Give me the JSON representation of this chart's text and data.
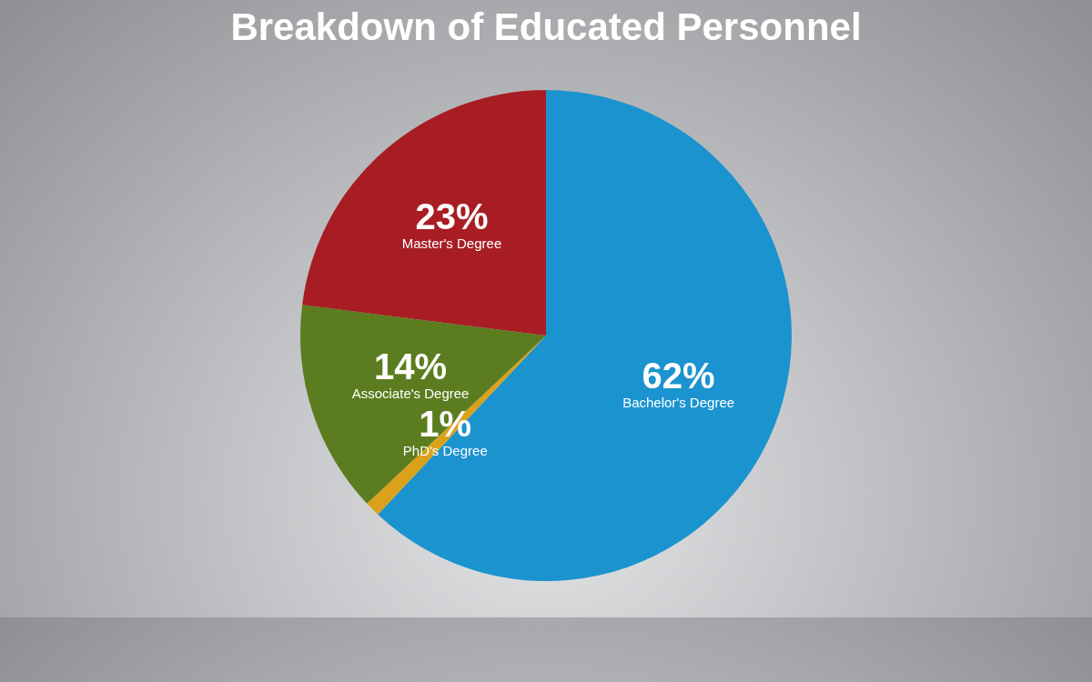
{
  "chart_data": {
    "type": "pie",
    "title": "Breakdown of Educated Personnel",
    "categories": [
      "Bachelor's Degree",
      "PhD's Degree",
      "Associate's Degree",
      "Master's Degree"
    ],
    "values": [
      62,
      1,
      14,
      23
    ],
    "colors": [
      "#1b93cf",
      "#d9a21a",
      "#5b7d1f",
      "#a81d24"
    ],
    "value_labels": [
      "62%",
      "1%",
      "14%",
      "23%"
    ],
    "legend": false
  }
}
